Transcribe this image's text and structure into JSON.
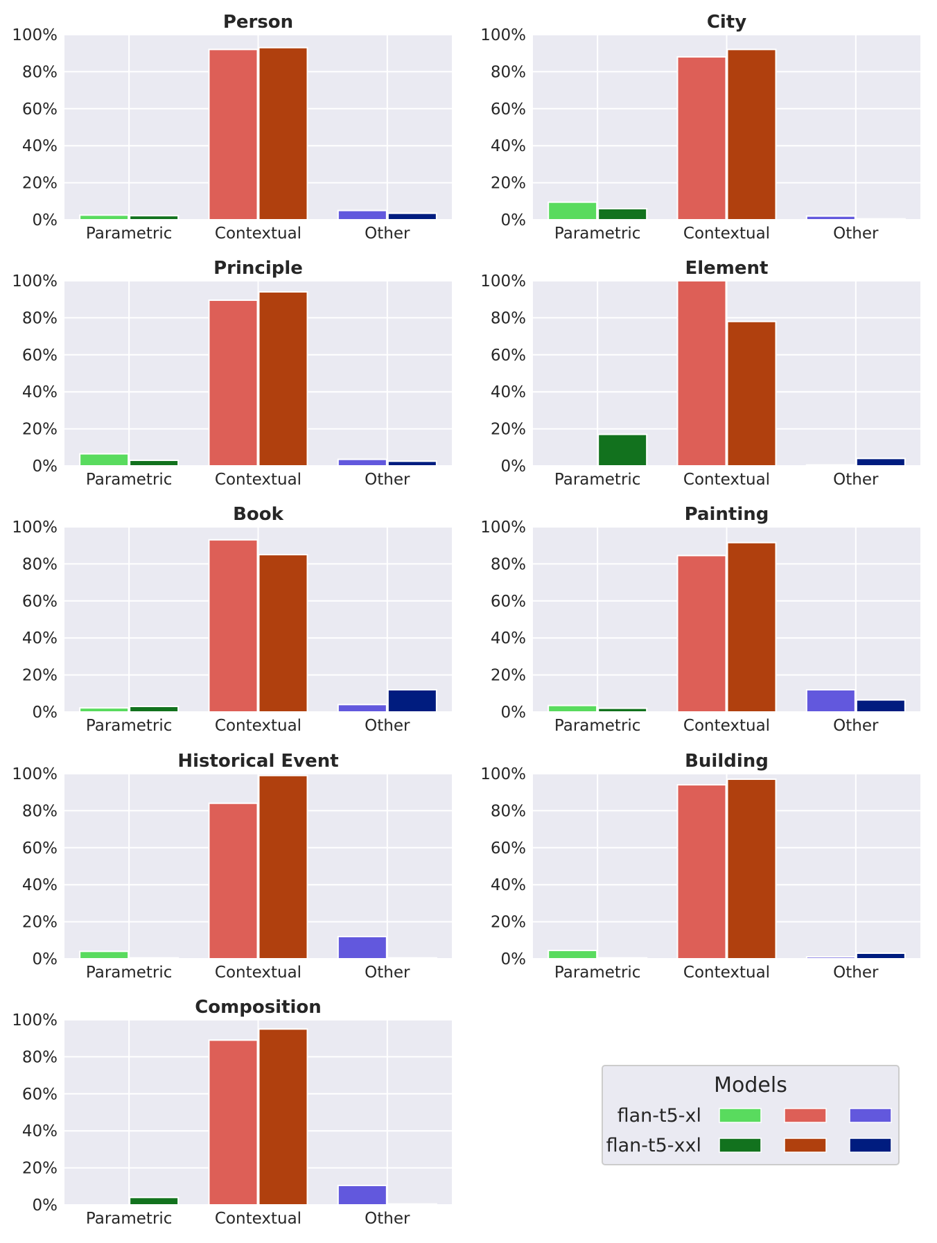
{
  "chart_data": {
    "type": "bar",
    "categories": [
      "Parametric",
      "Contextual",
      "Other"
    ],
    "y_ticks": [
      "0%",
      "20%",
      "40%",
      "60%",
      "80%",
      "100%"
    ],
    "ylim": [
      0,
      100
    ],
    "grid": true,
    "models": [
      "flan-t5-xl",
      "flan-t5-xxl"
    ],
    "colors": {
      "Parametric": [
        "#59db5e",
        "#12721e"
      ],
      "Contextual": [
        "#dd5f57",
        "#b0400e"
      ],
      "Other": [
        "#6258dd",
        "#001c7f"
      ]
    },
    "legend": {
      "title": "Models",
      "placement": "lower-right",
      "entries": [
        "flan-t5-xl",
        "flan-t5-xxl"
      ]
    },
    "panels": [
      {
        "title": "Person",
        "series": [
          {
            "name": "flan-t5-xl",
            "values": [
              2.5,
              92,
              5
            ]
          },
          {
            "name": "flan-t5-xxl",
            "values": [
              2.2,
              93,
              3.5
            ]
          }
        ]
      },
      {
        "title": "City",
        "series": [
          {
            "name": "flan-t5-xl",
            "values": [
              9.5,
              88,
              2
            ]
          },
          {
            "name": "flan-t5-xxl",
            "values": [
              6,
              92,
              0.5
            ]
          }
        ]
      },
      {
        "title": "Principle",
        "series": [
          {
            "name": "flan-t5-xl",
            "values": [
              6.5,
              89.5,
              3.5
            ]
          },
          {
            "name": "flan-t5-xxl",
            "values": [
              3,
              94,
              2.5
            ]
          }
        ]
      },
      {
        "title": "Element",
        "series": [
          {
            "name": "flan-t5-xl",
            "values": [
              0,
              100,
              0.5
            ]
          },
          {
            "name": "flan-t5-xxl",
            "values": [
              17,
              78,
              4
            ]
          }
        ]
      },
      {
        "title": "Book",
        "series": [
          {
            "name": "flan-t5-xl",
            "values": [
              2.2,
              93,
              4
            ]
          },
          {
            "name": "flan-t5-xxl",
            "values": [
              3,
              85,
              12
            ]
          }
        ]
      },
      {
        "title": "Painting",
        "series": [
          {
            "name": "flan-t5-xl",
            "values": [
              3.5,
              84.5,
              12
            ]
          },
          {
            "name": "flan-t5-xxl",
            "values": [
              2,
              91.5,
              6.5
            ]
          }
        ]
      },
      {
        "title": "Historical Event",
        "series": [
          {
            "name": "flan-t5-xl",
            "values": [
              4,
              84,
              12
            ]
          },
          {
            "name": "flan-t5-xxl",
            "values": [
              0.5,
              99,
              0.5
            ]
          }
        ]
      },
      {
        "title": "Building",
        "series": [
          {
            "name": "flan-t5-xl",
            "values": [
              4.5,
              94,
              1
            ]
          },
          {
            "name": "flan-t5-xxl",
            "values": [
              0.5,
              97,
              3
            ]
          }
        ]
      },
      {
        "title": "Composition",
        "series": [
          {
            "name": "flan-t5-xl",
            "values": [
              0,
              89,
              10.5
            ]
          },
          {
            "name": "flan-t5-xxl",
            "values": [
              4,
              95,
              0.5
            ]
          }
        ]
      }
    ]
  }
}
